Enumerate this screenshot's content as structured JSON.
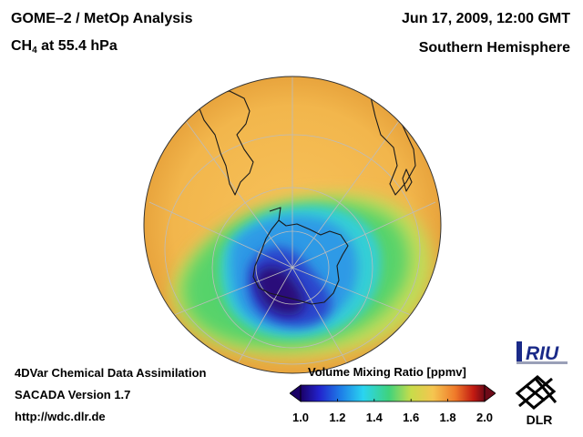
{
  "header": {
    "title_main": "GOME–2 / MetOp Analysis",
    "species_prefix": "CH",
    "species_subscript": "4",
    "species_suffix": " at 55.4 hPa",
    "date": "Jun 17, 2009, 12:00 GMT",
    "hemisphere": "Southern Hemisphere"
  },
  "footer": {
    "line1": "4DVar Chemical Data Assimilation",
    "line2": "SACADA Version 1.7",
    "line3": "http://wdc.dlr.de"
  },
  "colorbar": {
    "title": "Volume Mixing Ratio [ppmv]",
    "min": 1.0,
    "max": 2.0,
    "ticks": [
      "1.0",
      "1.2",
      "1.4",
      "1.6",
      "1.8",
      "2.0"
    ]
  },
  "logos": {
    "riu": "RIU",
    "dlr": "DLR"
  },
  "colors": {
    "background_field": "#f2b94e",
    "low_value": "#2a0a7a",
    "mid_value": "#2bd6f0",
    "high_value": "#c21a12"
  }
}
